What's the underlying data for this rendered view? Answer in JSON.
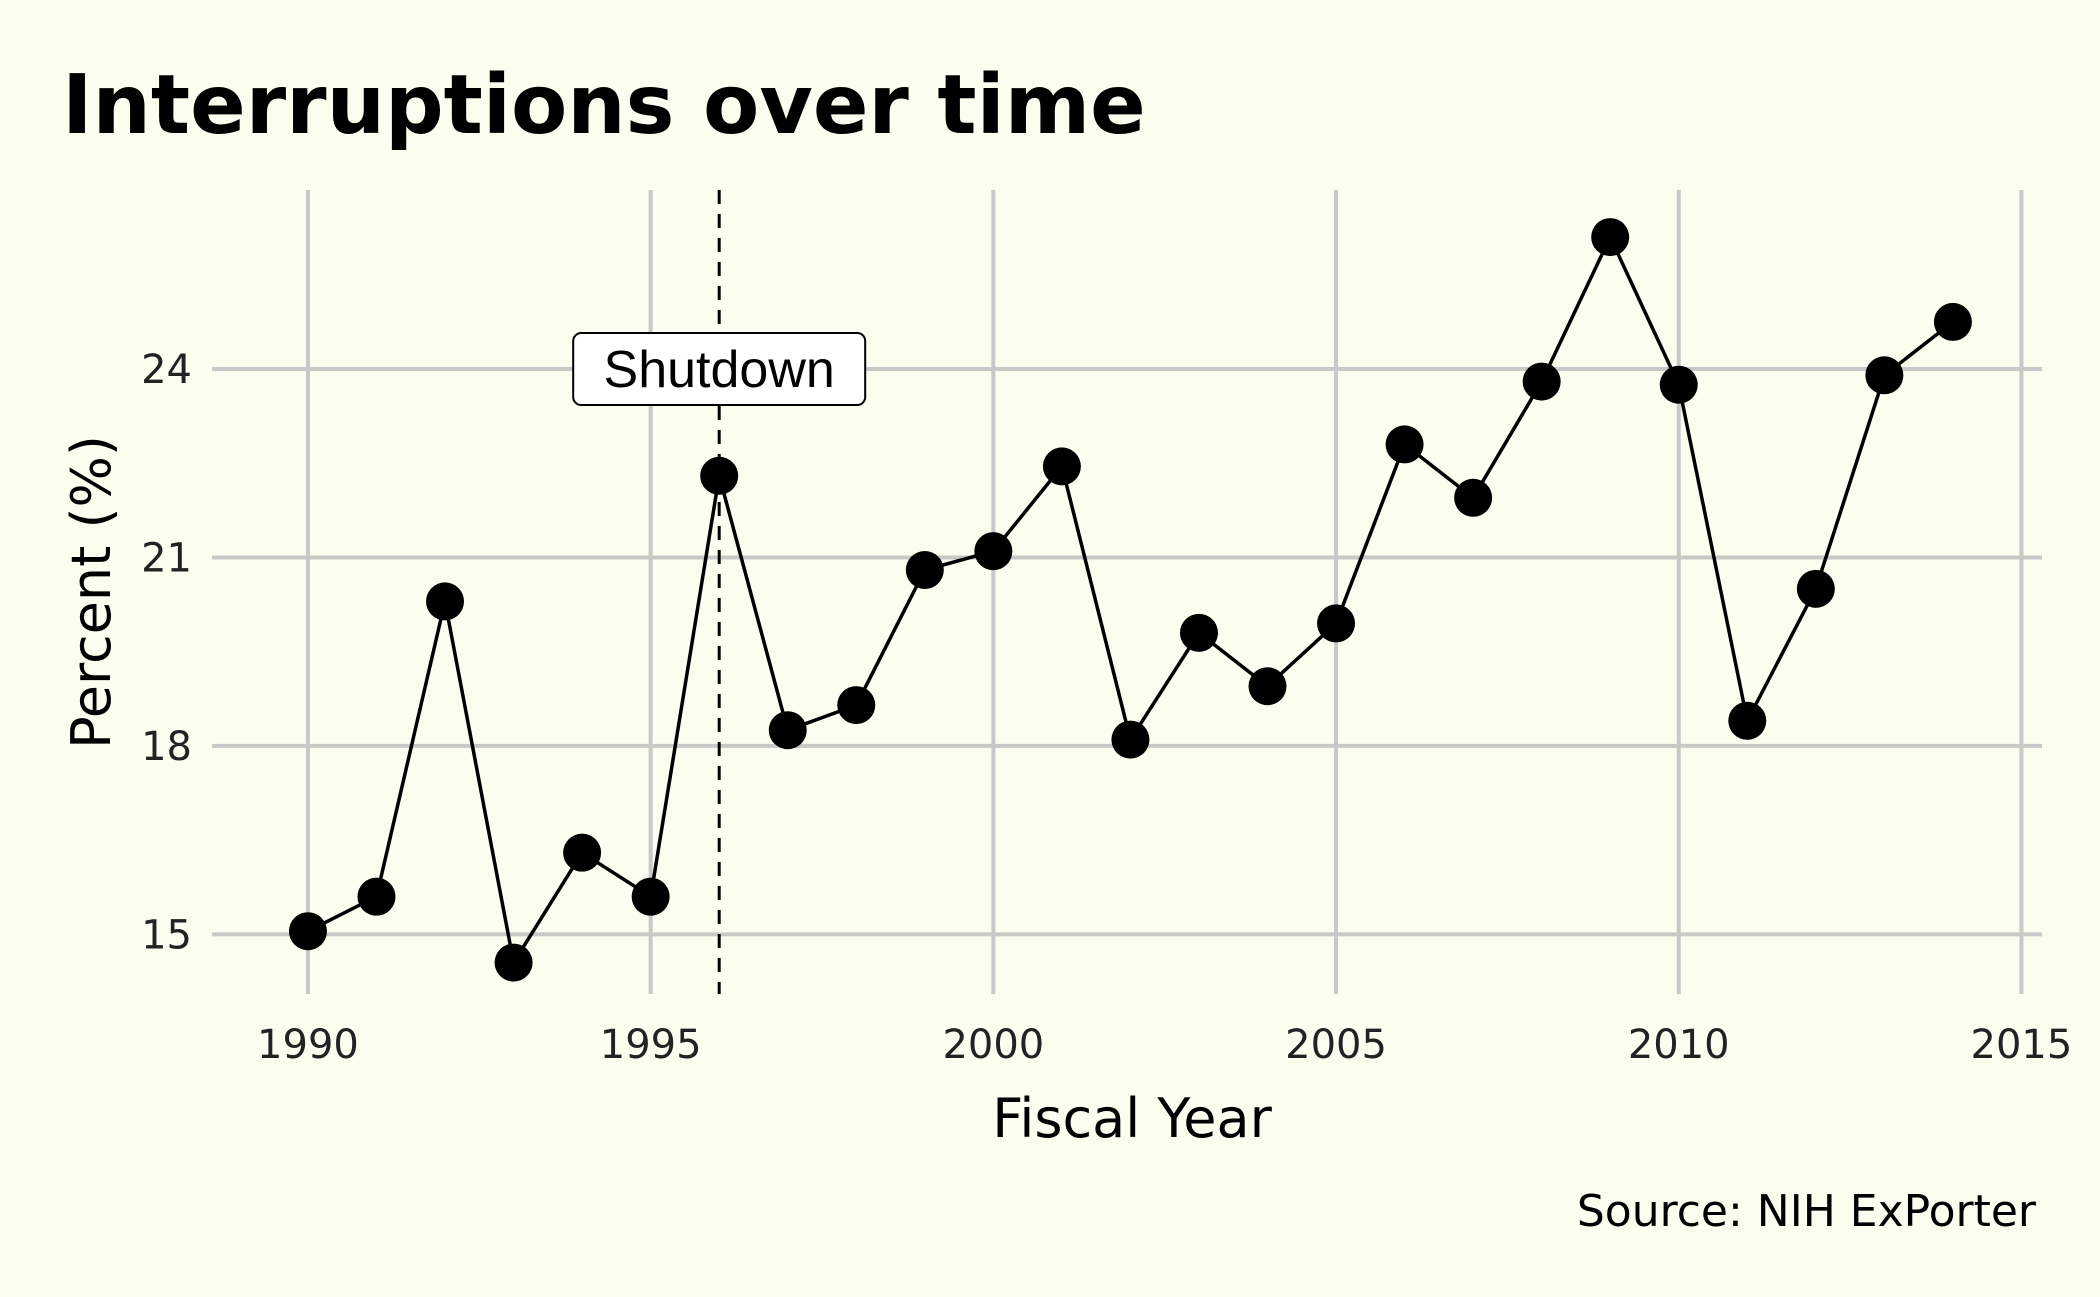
{
  "chart_data": {
    "type": "line",
    "title": "Interruptions over time",
    "xlabel": "Fiscal Year",
    "ylabel": "Percent (%)",
    "caption": "Source: NIH ExPorter",
    "xlim": [
      1988.6,
      2015.3
    ],
    "ylim": [
      14.05,
      26.85
    ],
    "x_ticks": [
      1990,
      1995,
      2000,
      2005,
      2010,
      2015
    ],
    "y_ticks": [
      15,
      18,
      21,
      24
    ],
    "grid": true,
    "series": [
      {
        "x": [
          1990,
          1991,
          1992,
          1993,
          1994,
          1995,
          1996,
          1997,
          1998,
          1999,
          2000,
          2001,
          2002,
          2003,
          2004,
          2005,
          2006,
          2007,
          2008,
          2009,
          2010,
          2011,
          2012,
          2013,
          2014
        ],
        "y": [
          15.05,
          15.6,
          20.3,
          14.55,
          16.3,
          15.6,
          22.3,
          18.25,
          18.65,
          20.8,
          21.1,
          22.45,
          18.1,
          19.8,
          18.95,
          19.95,
          22.8,
          21.95,
          23.8,
          26.1,
          23.75,
          18.4,
          20.5,
          23.9,
          24.75
        ]
      }
    ],
    "annotation": {
      "x": 1996,
      "label": "Shutdown",
      "label_y": 24,
      "style": "dashed vertical line"
    },
    "colors": {
      "background": "#fbfeee",
      "grid": "#c8c8c8",
      "line": "#000000",
      "point": "#000000"
    }
  }
}
